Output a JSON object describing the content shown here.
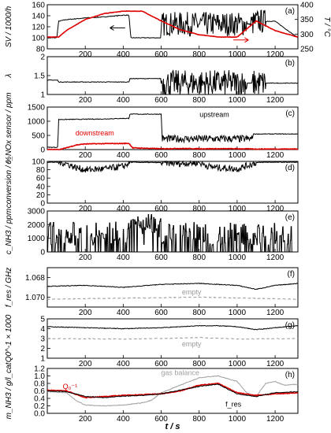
{
  "colors": {
    "black": "#000000",
    "red": "#e00000",
    "gray": "#a0a0a0",
    "empty_gray": "#9a9a9a"
  },
  "chart_data": {
    "type": "line",
    "x_axis": {
      "label": "t / s",
      "range": [
        0,
        1320
      ],
      "ticks": [
        200,
        400,
        600,
        800,
        1000,
        1200
      ]
    },
    "panels": [
      {
        "id": "a",
        "tag": "(a)",
        "ylabel": "SV / 1000/h",
        "yrange": [
          80,
          160
        ],
        "yticks": [
          80,
          100,
          120,
          140,
          160
        ],
        "y2label": "T / °C",
        "y2range": [
          250,
          400
        ],
        "y2ticks": [
          250,
          300,
          350,
          400
        ],
        "series": [
          {
            "name": "SV",
            "color": "black",
            "axis": "left",
            "x": [
              0,
              50,
              60,
              100,
              200,
              300,
              400,
              430,
              440,
              500,
              600,
              605,
              700,
              800,
              900,
              1000,
              1050,
              1080,
              1100,
              1200,
              1320
            ],
            "y": [
              100,
              100,
              130,
              133,
              136,
              138,
              141,
              141,
              100,
              100,
              100,
              125,
              125,
              125,
              125,
              125,
              125,
              125,
              130,
              130,
              100
            ],
            "noise": [
              [
                600,
                1050,
                22
              ],
              [
                1070,
                1150,
                22
              ]
            ]
          },
          {
            "name": "T",
            "color": "red",
            "axis": "right",
            "x": [
              0,
              60,
              100,
              200,
              300,
              400,
              500,
              600,
              700,
              800,
              900,
              1000,
              1100,
              1200,
              1320
            ],
            "y": [
              290,
              290,
              312,
              350,
              370,
              378,
              378,
              345,
              315,
              298,
              290,
              290,
              345,
              312,
              290
            ]
          }
        ],
        "annotations": []
      },
      {
        "id": "b",
        "tag": "(b)",
        "ylabel": "λ",
        "yrange": [
          1.0,
          2.0
        ],
        "yticks": [
          1.0,
          1.5,
          2.0
        ],
        "series": [
          {
            "name": "lambda",
            "color": "black",
            "x": [
              0,
              55,
              60,
              430,
              435,
              600,
              605,
              1080,
              1085,
              1320
            ],
            "y": [
              1.38,
              1.38,
              1.33,
              1.33,
              1.42,
              1.42,
              1.3,
              1.3,
              1.3,
              1.3
            ],
            "noise": [
              [
                600,
                1050,
                0.35
              ],
              [
                1080,
                1150,
                0.35
              ]
            ]
          }
        ],
        "annotations": []
      },
      {
        "id": "c",
        "tag": "(c)",
        "ylabel": "c_NOx sensor / ppm",
        "yrange": [
          0,
          1500
        ],
        "yticks": [
          0,
          500,
          1000,
          1500
        ],
        "series": [
          {
            "name": "upstream",
            "color": "black",
            "x": [
              0,
              55,
              60,
              300,
              400,
              430,
              435,
              600,
              605,
              1080,
              1085,
              1320
            ],
            "y": [
              80,
              80,
              1060,
              1080,
              1100,
              1100,
              1250,
              1250,
              380,
              380,
              550,
              550
            ],
            "noise": [
              [
                605,
                1080,
                130
              ]
            ]
          },
          {
            "name": "downstream",
            "color": "red",
            "x": [
              0,
              60,
              100,
              150,
              200,
              300,
              400,
              430,
              450,
              600,
              700,
              800,
              1000,
              1100,
              1320
            ],
            "y": [
              0,
              0,
              60,
              160,
              200,
              210,
              215,
              220,
              60,
              30,
              40,
              30,
              30,
              20,
              20
            ]
          }
        ],
        "annotations": [
          {
            "text": "upstream",
            "x": 880,
            "y": 1150,
            "color": "black"
          },
          {
            "text": "downstream",
            "x": 250,
            "y": 500,
            "color": "red"
          }
        ]
      },
      {
        "id": "d",
        "tag": "(d)",
        "ylabel": "conversion / %",
        "yrange": [
          0,
          100
        ],
        "yticks": [
          0,
          20,
          40,
          60,
          80,
          100
        ],
        "series": [
          {
            "name": "conversion",
            "color": "black",
            "x": [
              0,
              60,
              100,
              150,
              200,
              300,
              400,
              440,
              600,
              700,
              800,
              850,
              900,
              1000,
              1100,
              1150,
              1320
            ],
            "y": [
              98,
              98,
              95,
              85,
              80,
              82,
              88,
              98,
              97,
              95,
              97,
              88,
              85,
              82,
              97,
              98,
              98
            ],
            "noise": [
              [
                60,
                440,
                8
              ],
              [
                600,
                1100,
                8
              ]
            ]
          }
        ],
        "annotations": []
      },
      {
        "id": "e",
        "tag": "(e)",
        "ylabel": "c_NH3 / ppm",
        "yrange": [
          0,
          3000
        ],
        "yticks": [
          0,
          1000,
          2000,
          3000
        ],
        "series": [
          {
            "name": "NH3",
            "color": "black",
            "kind": "pulses",
            "x": [
              0,
              1320
            ],
            "y": [
              0,
              0
            ]
          }
        ],
        "annotations": []
      },
      {
        "id": "f",
        "tag": "(f)",
        "ylabel": "f_res / GHz",
        "yrange": [
          1.071,
          1.067
        ],
        "yticks": [
          1.068,
          1.07
        ],
        "yticklabels": [
          "1.068",
          "1.070"
        ],
        "series": [
          {
            "name": "f_res",
            "color": "black",
            "x": [
              0,
              200,
              400,
              600,
              800,
              1000,
              1100,
              1200,
              1320
            ],
            "y": [
              1.0689,
              1.0688,
              1.069,
              1.0687,
              1.0686,
              1.0688,
              1.0692,
              1.0688,
              1.0686
            ]
          },
          {
            "name": "empty",
            "color": "empty_gray",
            "dashed": true,
            "x": [
              0,
              400,
              800,
              1320
            ],
            "y": [
              1.0702,
              1.0701,
              1.07,
              1.0702
            ]
          }
        ],
        "annotations": [
          {
            "text": "empty",
            "x": 760,
            "y": 1.0697,
            "color": "empty_gray"
          }
        ]
      },
      {
        "id": "g",
        "tag": "(g)",
        "ylabel": "Q0^-1 × 1000",
        "yrange": [
          1,
          5
        ],
        "yticks": [
          1,
          2,
          3,
          4,
          5
        ],
        "series": [
          {
            "name": "Q0^-1",
            "color": "black",
            "x": [
              0,
              200,
              400,
              600,
              800,
              900,
              1000,
              1100,
              1200,
              1320
            ],
            "y": [
              4.2,
              4.1,
              4.0,
              4.1,
              4.3,
              4.3,
              4.2,
              3.9,
              4.1,
              4.3
            ]
          },
          {
            "name": "empty",
            "color": "empty_gray",
            "dashed": true,
            "x": [
              0,
              400,
              600,
              800,
              1000,
              1320
            ],
            "y": [
              3.0,
              2.95,
              3.0,
              3.1,
              2.95,
              3.0
            ]
          }
        ],
        "annotations": [
          {
            "text": "empty",
            "x": 760,
            "y": 2.2,
            "color": "empty_gray"
          }
        ]
      },
      {
        "id": "h",
        "tag": "(h)",
        "ylabel": "m_NH3 / g/l_cat",
        "yrange": [
          0,
          1.2
        ],
        "yticks": [
          0.0,
          0.2,
          0.4,
          0.6,
          0.8,
          1.0,
          1.2
        ],
        "yticklabels": [
          "0.0",
          "0.2",
          "0.4",
          "0.6",
          "0.8",
          "1.0",
          "1.2"
        ],
        "series": [
          {
            "name": "gas balance",
            "color": "gray",
            "x": [
              0,
              100,
              150,
              200,
              300,
              400,
              500,
              550,
              600,
              650,
              700,
              800,
              900,
              1000,
              1050,
              1100,
              1150,
              1200,
              1250,
              1320
            ],
            "y": [
              0.58,
              0.55,
              0.35,
              0.22,
              0.2,
              0.22,
              0.28,
              0.35,
              0.55,
              0.65,
              0.75,
              0.95,
              1.0,
              0.85,
              0.55,
              0.45,
              0.8,
              0.85,
              0.75,
              0.78
            ]
          },
          {
            "name": "Q0^-1",
            "color": "red",
            "x": [
              0,
              100,
              200,
              300,
              400,
              500,
              600,
              700,
              800,
              900,
              1000,
              1100,
              1200,
              1320
            ],
            "y": [
              0.62,
              0.6,
              0.42,
              0.45,
              0.48,
              0.5,
              0.52,
              0.6,
              0.75,
              0.8,
              0.55,
              0.48,
              0.52,
              0.55
            ]
          },
          {
            "name": "f_res",
            "color": "black",
            "x": [
              0,
              100,
              200,
              300,
              400,
              500,
              600,
              700,
              800,
              900,
              1000,
              1100,
              1200,
              1320
            ],
            "y": [
              0.6,
              0.58,
              0.45,
              0.42,
              0.46,
              0.48,
              0.52,
              0.62,
              0.72,
              0.78,
              0.52,
              0.45,
              0.55,
              0.58
            ]
          }
        ],
        "annotations": [
          {
            "text": "gas balance",
            "x": 700,
            "y": 1.02,
            "color": "gray"
          },
          {
            "text": "Q₀⁻¹",
            "x": 120,
            "y": 0.65,
            "color": "red"
          },
          {
            "text": "f_res",
            "x": 980,
            "y": 0.18,
            "color": "black"
          }
        ]
      }
    ]
  }
}
